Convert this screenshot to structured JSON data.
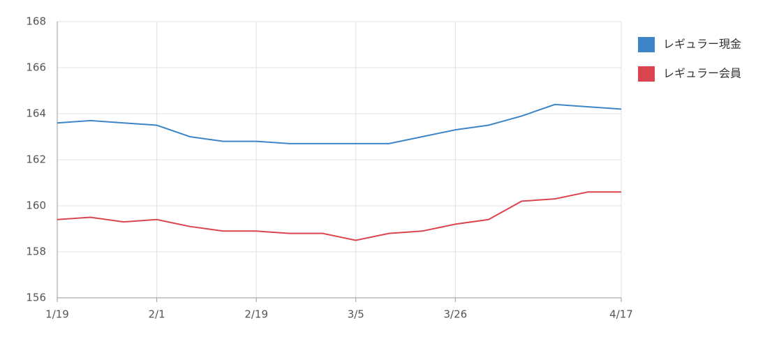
{
  "chart_data": {
    "type": "line",
    "categories": [
      "1/19",
      null,
      null,
      "2/1",
      null,
      null,
      "2/19",
      null,
      null,
      "3/5",
      null,
      null,
      "3/26",
      null,
      null,
      null,
      null,
      "4/17"
    ],
    "series": [
      {
        "name": "レギュラー現金",
        "color": "#3d85c6",
        "values": [
          163.6,
          163.7,
          163.6,
          163.5,
          163.0,
          162.8,
          162.8,
          162.7,
          162.7,
          162.7,
          162.7,
          163.0,
          163.3,
          163.5,
          163.9,
          164.4,
          164.3,
          164.2
        ]
      },
      {
        "name": "レギュラー会員",
        "color": "#d9444f",
        "values": [
          159.4,
          159.5,
          159.3,
          159.4,
          159.1,
          158.9,
          158.9,
          158.8,
          158.8,
          158.5,
          158.8,
          158.9,
          159.2,
          159.4,
          160.2,
          160.3,
          160.6,
          160.6
        ]
      }
    ],
    "ylim": [
      156,
      168
    ],
    "yticks": [
      156,
      158,
      160,
      162,
      164,
      166,
      168
    ],
    "grid": true,
    "legend": "right"
  }
}
